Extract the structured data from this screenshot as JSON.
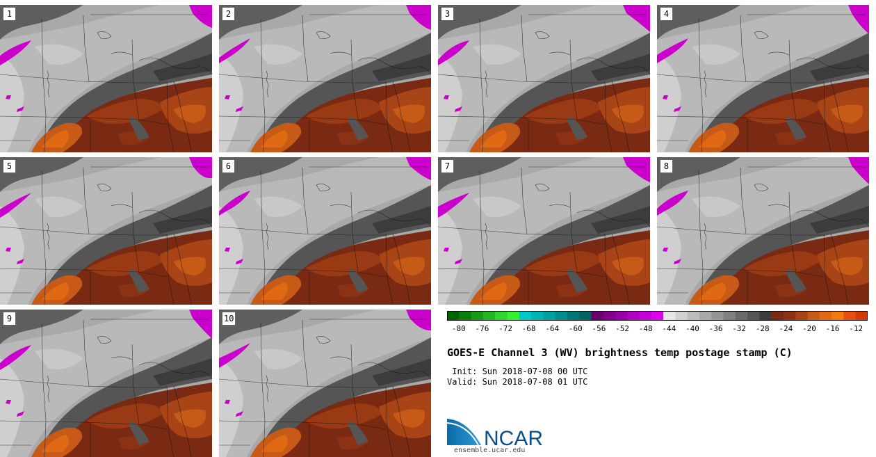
{
  "panels": [
    {
      "label": "1"
    },
    {
      "label": "2"
    },
    {
      "label": "3"
    },
    {
      "label": "4"
    },
    {
      "label": "5"
    },
    {
      "label": "6"
    },
    {
      "label": "7"
    },
    {
      "label": "8"
    },
    {
      "label": "9"
    },
    {
      "label": "10"
    }
  ],
  "colorbar": {
    "colors": [
      "#006400",
      "#0b7d0b",
      "#169a16",
      "#22b822",
      "#2ed62e",
      "#33f033",
      "#00c8c8",
      "#00b4b4",
      "#00a0a0",
      "#008c8c",
      "#007878",
      "#006464",
      "#6a0070",
      "#80008a",
      "#9600a6",
      "#b000c0",
      "#c800d8",
      "#e000f0",
      "#e6e6e6",
      "#d0d0d0",
      "#bcbcbc",
      "#a8a8a8",
      "#949494",
      "#808080",
      "#6a6a6a",
      "#555555",
      "#3c3c3c",
      "#7a2a12",
      "#8c3214",
      "#a84416",
      "#c85a18",
      "#e06a14",
      "#f07a10",
      "#e84e10",
      "#d03a08"
    ],
    "ticks": [
      "-80",
      "-76",
      "-72",
      "-68",
      "-64",
      "-60",
      "-56",
      "-52",
      "-48",
      "-44",
      "-40",
      "-36",
      "-32",
      "-28",
      "-24",
      "-20",
      "-16",
      "-12"
    ],
    "min": -82,
    "max": -10
  },
  "title": "GOES-E Channel 3 (WV) brightness temp postage stamp (C)",
  "init": " Init: Sun 2018-07-08 00 UTC",
  "valid": "Valid: Sun 2018-07-08 01 UTC",
  "logo": {
    "text": "NCAR",
    "url": "ensemble.ucar.edu",
    "brand_color": "#0b6aa8"
  }
}
